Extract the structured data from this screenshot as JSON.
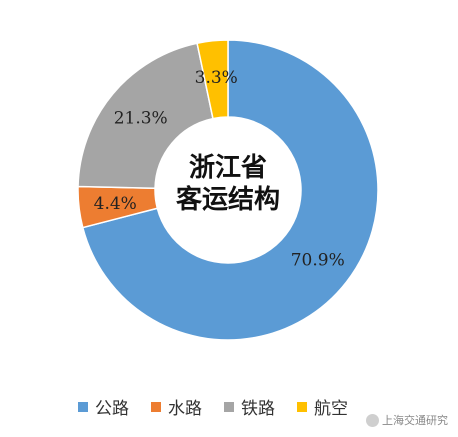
{
  "chart_data": {
    "type": "pie",
    "donut": true,
    "center_title": [
      "浙江省",
      "客运结构"
    ],
    "legend_position": "bottom",
    "series": [
      {
        "name": "公路",
        "value": 70.9,
        "label": "70.9%",
        "color": "#5b9bd5"
      },
      {
        "name": "水路",
        "value": 4.4,
        "label": "4.4%",
        "color": "#ed7d31"
      },
      {
        "name": "铁路",
        "value": 21.3,
        "label": "21.3%",
        "color": "#a5a5a5"
      },
      {
        "name": "航空",
        "value": 3.3,
        "label": "3.3%",
        "color": "#ffc000"
      }
    ]
  },
  "watermark": "上海交通研究"
}
